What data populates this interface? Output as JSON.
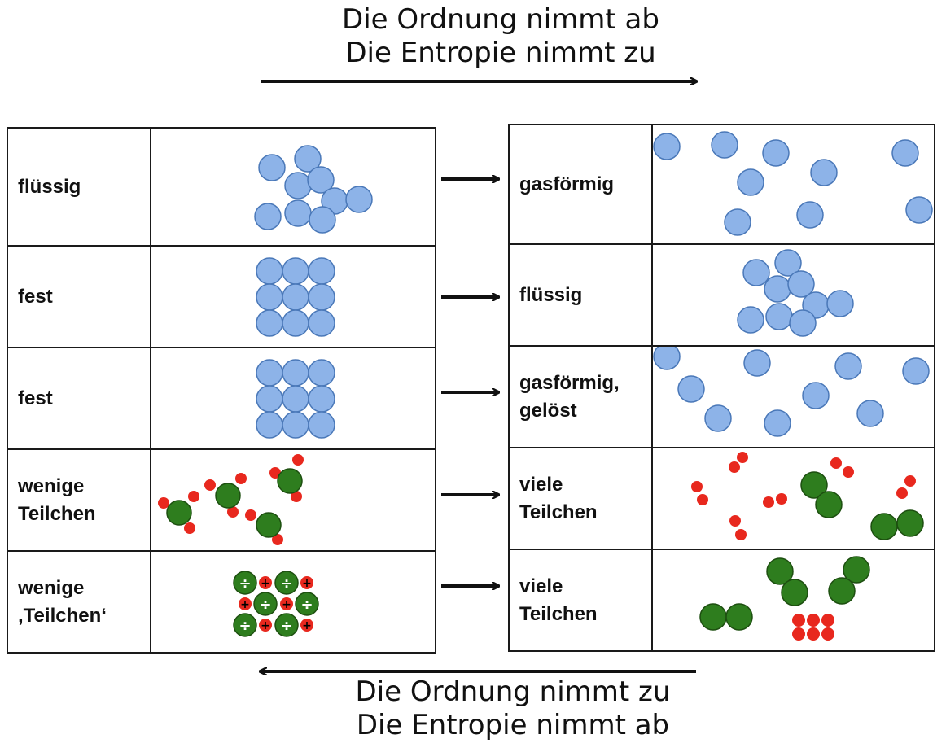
{
  "top_heading": {
    "line1": "Die Ordnung nimmt ab",
    "line2": "Die Entropie nimmt zu"
  },
  "bottom_heading": {
    "line1": "Die Ordnung nimmt zu",
    "line2": "Die Entropie nimmt ab"
  },
  "left_rows": [
    {
      "label": "flüssig"
    },
    {
      "label": "fest"
    },
    {
      "label": "fest"
    },
    {
      "label": "wenige Teilchen"
    },
    {
      "label": "wenige ‚Teilchen‘"
    }
  ],
  "right_rows": [
    {
      "label": "gasförmig"
    },
    {
      "label": "flüssig"
    },
    {
      "label": "gasförmig, gelöst"
    },
    {
      "label": "viele Teilchen"
    },
    {
      "label": "viele Teilchen"
    }
  ],
  "ion_symbols": {
    "plus": "+",
    "minus": "÷"
  },
  "colors": {
    "blue": "#8db3e8",
    "blue_stroke": "#4a78b8",
    "green": "#2e7d1e",
    "green_stroke": "#1d4f10",
    "red": "#e8281e"
  }
}
